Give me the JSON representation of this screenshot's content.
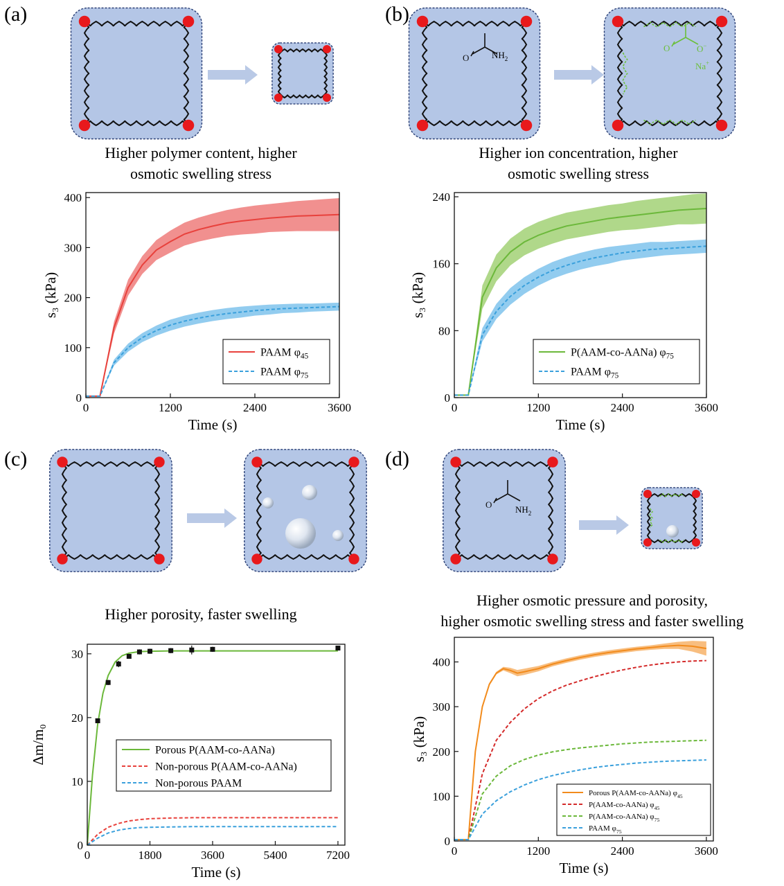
{
  "panels": {
    "a": {
      "label": "(a)",
      "caption": [
        "Higher polymer content, higher",
        "osmotic swelling stress"
      ]
    },
    "b": {
      "label": "(b)",
      "caption": [
        "Higher ion concentration, higher",
        "osmotic swelling stress"
      ]
    },
    "c": {
      "label": "(c)",
      "caption": [
        "Higher porosity, faster swelling"
      ]
    },
    "d": {
      "label": "(d)",
      "caption": [
        "Higher osmotic pressure and porosity,",
        "higher osmotic swelling stress and faster swelling"
      ]
    }
  },
  "schematic_text": {
    "amide_group": "NH",
    "amide_sub": "2",
    "carboxylate": "O",
    "sodium": "Na"
  },
  "colors": {
    "gel_fill": "#b4c6e6",
    "gel_border": "#2a3f75",
    "crosslink": "#e8191c",
    "arrow": "#b9c9e6",
    "ionic_chain": "#6bbf3a",
    "red": "#e8413c",
    "blue": "#3aa0dc",
    "green": "#6bb83a",
    "orange": "#f28b1c",
    "darkred": "#d42a2a"
  },
  "chart_data": [
    {
      "type": "line",
      "panel": "a",
      "xlabel": "Time (s)",
      "ylabel": "s₃ (kPa)",
      "xlim": [
        0,
        3600
      ],
      "ylim": [
        0,
        410
      ],
      "xticks": [
        0,
        1200,
        2400,
        3600
      ],
      "yticks": [
        0,
        100,
        200,
        300,
        400
      ],
      "legend": "bottom-right",
      "series": [
        {
          "name": "PAAM φ45",
          "legend_main": "PAAM φ",
          "legend_sub": "45",
          "style": "solid",
          "color": "#e8413c",
          "band": true,
          "band_color": "#ef7c7b",
          "x": [
            0,
            200,
            400,
            600,
            800,
            1000,
            1200,
            1400,
            1600,
            1800,
            2000,
            2200,
            2400,
            2600,
            2800,
            3000,
            3200,
            3400,
            3600
          ],
          "y": [
            3,
            3,
            140,
            220,
            265,
            295,
            312,
            327,
            336,
            343,
            349,
            353,
            356,
            359,
            361,
            363,
            364,
            365,
            366
          ],
          "band_halfwidth": [
            0,
            0,
            12,
            16,
            18,
            20,
            22,
            23,
            24,
            25,
            26,
            27,
            28,
            28,
            29,
            30,
            31,
            32,
            33
          ]
        },
        {
          "name": "PAAM φ75",
          "legend_main": "PAAM φ",
          "legend_sub": "75",
          "style": "dashed",
          "color": "#3aa0dc",
          "band": true,
          "band_color": "#7fc3ec",
          "x": [
            0,
            200,
            400,
            600,
            800,
            1000,
            1200,
            1400,
            1600,
            1800,
            2000,
            2200,
            2400,
            2600,
            2800,
            3000,
            3200,
            3400,
            3600
          ],
          "y": [
            3,
            3,
            70,
            100,
            120,
            134,
            145,
            153,
            159,
            164,
            168,
            171,
            174,
            176,
            178,
            179,
            180,
            181,
            182
          ],
          "band_halfwidth": [
            0,
            0,
            6,
            8,
            9,
            10,
            11,
            11,
            11,
            11,
            11,
            11,
            10,
            10,
            9,
            9,
            8,
            8,
            8
          ]
        }
      ]
    },
    {
      "type": "line",
      "panel": "b",
      "xlabel": "Time (s)",
      "ylabel": "s₃ (kPa)",
      "xlim": [
        0,
        3600
      ],
      "ylim": [
        0,
        245
      ],
      "xticks": [
        0,
        1200,
        2400,
        3600
      ],
      "yticks": [
        0,
        80,
        160,
        240
      ],
      "legend": "bottom-right",
      "series": [
        {
          "name": "P(AAM-co-AANa) φ75",
          "legend_main": "P(AAM-co-AANa) φ",
          "legend_sub": "75",
          "style": "solid",
          "color": "#6bb83a",
          "band": true,
          "band_color": "#a2d175",
          "x": [
            0,
            200,
            400,
            600,
            800,
            1000,
            1200,
            1400,
            1600,
            1800,
            2000,
            2200,
            2400,
            2600,
            2800,
            3000,
            3200,
            3400,
            3600
          ],
          "y": [
            3,
            3,
            120,
            155,
            174,
            186,
            194,
            200,
            205,
            208,
            211,
            214,
            216,
            218,
            220,
            222,
            224,
            225,
            226
          ],
          "band_halfwidth": [
            0,
            0,
            14,
            16,
            16,
            16,
            16,
            16,
            16,
            16,
            16,
            16,
            16,
            17,
            17,
            17,
            17,
            18,
            18
          ]
        },
        {
          "name": "PAAM φ75",
          "legend_main": "PAAM φ",
          "legend_sub": "75",
          "style": "dashed",
          "color": "#3aa0dc",
          "band": true,
          "band_color": "#7fc3ec",
          "x": [
            0,
            200,
            400,
            600,
            800,
            1000,
            1200,
            1400,
            1600,
            1800,
            2000,
            2200,
            2400,
            2600,
            2800,
            3000,
            3200,
            3400,
            3600
          ],
          "y": [
            3,
            3,
            75,
            103,
            121,
            134,
            144,
            152,
            158,
            163,
            167,
            170,
            173,
            175,
            177,
            178,
            179,
            180,
            181
          ],
          "band_halfwidth": [
            0,
            0,
            8,
            9,
            10,
            10,
            10,
            10,
            10,
            10,
            10,
            10,
            9,
            9,
            9,
            8,
            8,
            8,
            8
          ]
        }
      ]
    },
    {
      "type": "line",
      "panel": "c",
      "xlabel": "Time (s)",
      "ylabel": "Δm/m₀",
      "xlim": [
        0,
        7400
      ],
      "ylim": [
        0,
        31.5
      ],
      "xticks": [
        0,
        1800,
        3600,
        5400,
        7200
      ],
      "yticks": [
        0,
        10,
        20,
        30
      ],
      "legend": "center-right",
      "points": {
        "x": [
          300,
          600,
          900,
          1200,
          1500,
          1800,
          2400,
          3000,
          3600,
          7200
        ],
        "y": [
          19.5,
          25.5,
          28.4,
          29.6,
          30.3,
          30.4,
          30.5,
          30.6,
          30.7,
          30.9
        ],
        "err": [
          0.2,
          0.4,
          0.5,
          0.3,
          0.4,
          0.4,
          0.4,
          0.7,
          0.4,
          0.3
        ]
      },
      "series": [
        {
          "name": "Porous P(AAM-co-AANa)",
          "style": "solid",
          "color": "#6bb83a",
          "x": [
            0,
            150,
            300,
            450,
            600,
            800,
            1000,
            1200,
            1500,
            1800,
            2400,
            3600,
            5400,
            7200
          ],
          "y": [
            0,
            11,
            19,
            23.8,
            26.6,
            28.7,
            29.7,
            30.1,
            30.35,
            30.4,
            30.45,
            30.45,
            30.45,
            30.45
          ]
        },
        {
          "name": "Non-porous P(AAM-co-AANa)",
          "style": "dashed",
          "color": "#e8413c",
          "x": [
            0,
            300,
            600,
            900,
            1200,
            1500,
            1800,
            2400,
            3000,
            3600,
            5400,
            7200
          ],
          "y": [
            0,
            1.7,
            2.8,
            3.4,
            3.8,
            4.0,
            4.15,
            4.25,
            4.3,
            4.3,
            4.3,
            4.3
          ]
        },
        {
          "name": "Non-porous PAAM",
          "style": "dashed",
          "color": "#3aa0dc",
          "x": [
            0,
            300,
            600,
            900,
            1200,
            1500,
            1800,
            2400,
            3000,
            3600,
            5400,
            7200
          ],
          "y": [
            0,
            1.1,
            1.9,
            2.35,
            2.6,
            2.75,
            2.8,
            2.85,
            2.9,
            2.9,
            2.9,
            2.9
          ]
        }
      ]
    },
    {
      "type": "line",
      "panel": "d",
      "xlabel": "Time (s)",
      "ylabel": "s₃ (kPa)",
      "xlim": [
        0,
        3700
      ],
      "ylim": [
        0,
        455
      ],
      "xticks": [
        0,
        1200,
        2400,
        3600
      ],
      "yticks": [
        0,
        100,
        200,
        300,
        400
      ],
      "legend": "bottom-right",
      "series": [
        {
          "name": "Porous P(AAM-co-AANa) φ45",
          "legend_main": "Porous P(AAM-co-AANa) φ",
          "legend_sub": "45",
          "style": "solid",
          "color": "#f28b1c",
          "band": true,
          "band_color": "#f7b36a",
          "x": [
            0,
            200,
            300,
            400,
            500,
            600,
            700,
            800,
            900,
            1000,
            1200,
            1400,
            1600,
            1800,
            2000,
            2200,
            2400,
            2600,
            2800,
            3000,
            3200,
            3400,
            3600
          ],
          "y": [
            3,
            3,
            200,
            300,
            350,
            375,
            385,
            381,
            375,
            378,
            385,
            395,
            403,
            410,
            416,
            421,
            425,
            429,
            432,
            435,
            437,
            435,
            430
          ],
          "band_halfwidth": [
            0,
            0,
            2,
            3,
            3,
            3,
            4,
            6,
            7,
            7,
            6,
            5,
            5,
            5,
            5,
            5,
            5,
            5,
            5,
            6,
            8,
            12,
            16
          ]
        },
        {
          "name": "P(AAM-co-AANa) φ45",
          "legend_main": "P(AAM-co-AANa) φ",
          "legend_sub": "45",
          "style": "dashed",
          "color": "#d42a2a",
          "x": [
            0,
            200,
            400,
            600,
            800,
            1000,
            1200,
            1400,
            1600,
            1800,
            2000,
            2200,
            2400,
            2600,
            2800,
            3000,
            3200,
            3400,
            3600
          ],
          "y": [
            3,
            3,
            150,
            225,
            265,
            295,
            318,
            335,
            348,
            358,
            367,
            375,
            382,
            388,
            393,
            397,
            400,
            402,
            403
          ]
        },
        {
          "name": "P(AAM-co-AANa) φ75",
          "legend_main": "P(AAM-co-AANa) φ",
          "legend_sub": "75",
          "style": "dashed",
          "color": "#6bb83a",
          "x": [
            0,
            200,
            400,
            600,
            800,
            1000,
            1200,
            1400,
            1600,
            1800,
            2000,
            2200,
            2400,
            2600,
            2800,
            3000,
            3200,
            3400,
            3600
          ],
          "y": [
            3,
            3,
            105,
            145,
            168,
            182,
            192,
            199,
            204,
            208,
            211,
            214,
            217,
            219,
            221,
            222,
            223,
            224,
            225
          ]
        },
        {
          "name": "PAAM φ75",
          "legend_main": "PAAM φ",
          "legend_sub": "75",
          "style": "dashed",
          "color": "#3aa0dc",
          "x": [
            0,
            200,
            400,
            600,
            800,
            1000,
            1200,
            1400,
            1600,
            1800,
            2000,
            2200,
            2400,
            2600,
            2800,
            3000,
            3200,
            3400,
            3600
          ],
          "y": [
            3,
            3,
            60,
            90,
            110,
            125,
            137,
            146,
            153,
            159,
            164,
            168,
            171,
            174,
            176,
            178,
            179,
            180,
            181
          ]
        }
      ]
    }
  ]
}
